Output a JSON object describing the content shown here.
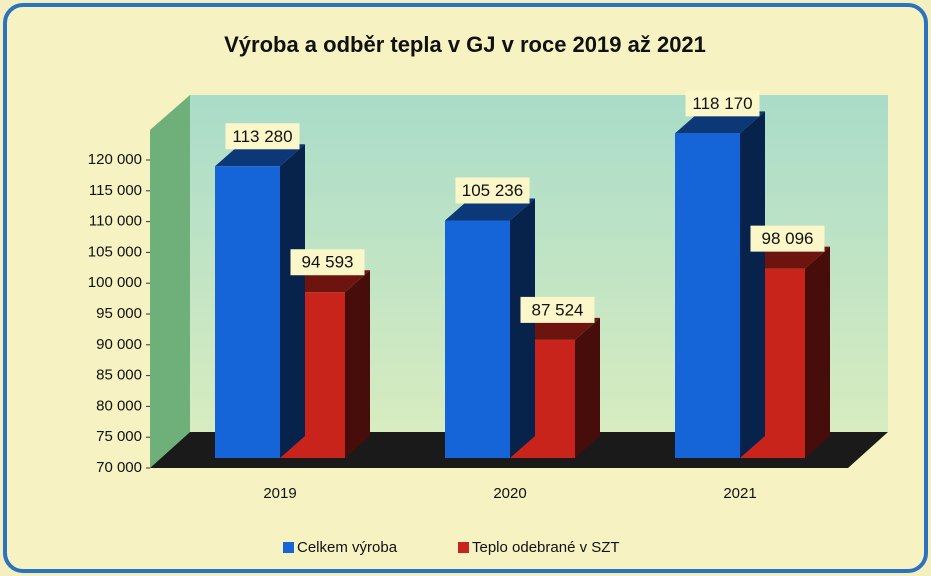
{
  "chart_data": {
    "type": "bar3d",
    "title": "Výroba a odběr tepla v GJ v roce 2019 až 2021",
    "categories": [
      "2019",
      "2020",
      "2021"
    ],
    "series": [
      {
        "name": "Celkem výroba",
        "color": "#1565d8",
        "values": [
          113280,
          105236,
          118170
        ],
        "value_labels": [
          "113 280",
          "105 236",
          "118 170"
        ]
      },
      {
        "name": "Teplo odebrané v SZT",
        "color": "#c8241c",
        "values": [
          94593,
          87524,
          98096
        ],
        "value_labels": [
          "94 593",
          "87 524",
          "98 096"
        ]
      }
    ],
    "ylim": [
      70000,
      120000
    ],
    "yticks": [
      {
        "value": 70000,
        "label": "70 000"
      },
      {
        "value": 75000,
        "label": "75 000"
      },
      {
        "value": 80000,
        "label": "80 000"
      },
      {
        "value": 85000,
        "label": "85 000"
      },
      {
        "value": 90000,
        "label": "90 000"
      },
      {
        "value": 95000,
        "label": "95 000"
      },
      {
        "value": 100000,
        "label": "100 000"
      },
      {
        "value": 105000,
        "label": "105 000"
      },
      {
        "value": 110000,
        "label": "110 000"
      },
      {
        "value": 115000,
        "label": "115 000"
      },
      {
        "value": 120000,
        "label": "120 000"
      }
    ],
    "legend": "bottom"
  }
}
